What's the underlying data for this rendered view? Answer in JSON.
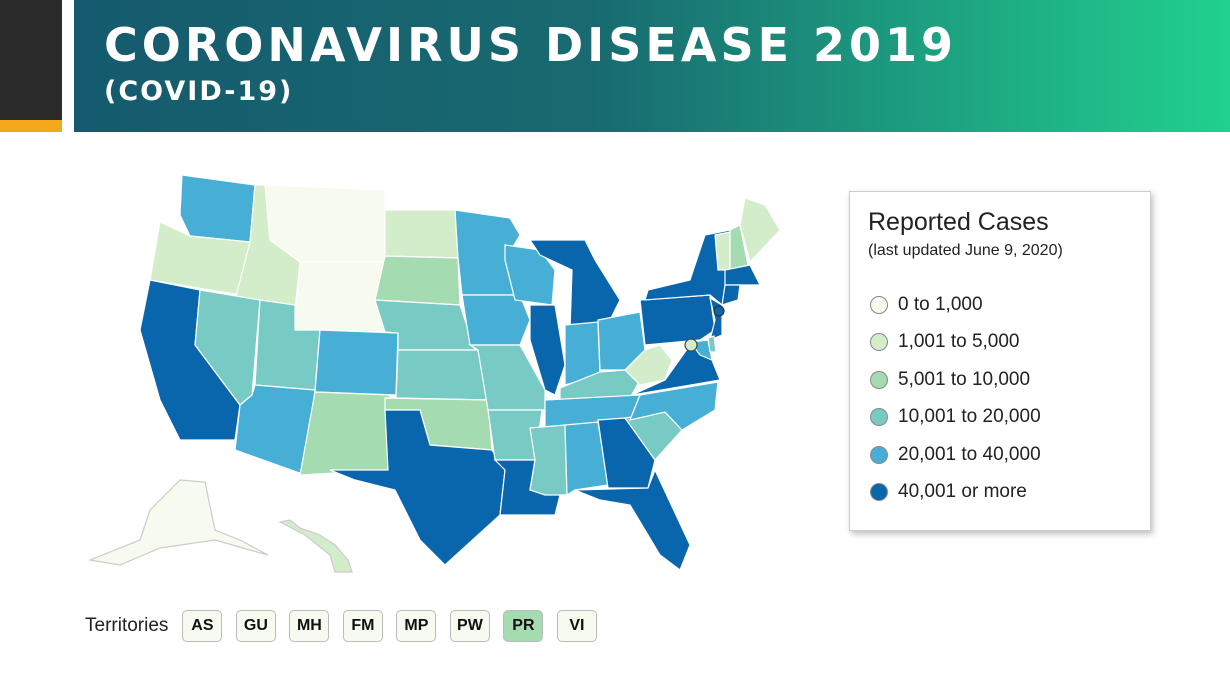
{
  "header": {
    "title": "CORONAVIRUS DISEASE 2019",
    "subtitle": "(COVID-19)"
  },
  "legend": {
    "title": "Reported Cases",
    "subtitle": "(last updated June 9, 2020)",
    "items": [
      {
        "label": "0 to 1,000",
        "color": "#f6faef"
      },
      {
        "label": "1,001 to 5,000",
        "color": "#d3ecc9"
      },
      {
        "label": "5,001 to 10,000",
        "color": "#a5dbb1"
      },
      {
        "label": "10,001 to 20,000",
        "color": "#78cbc4"
      },
      {
        "label": "20,001 to 40,000",
        "color": "#47afd6"
      },
      {
        "label": "40,001 or more",
        "color": "#0a66ac"
      }
    ]
  },
  "map": {
    "states": {
      "WA": 4,
      "OR": 1,
      "CA": 5,
      "ID": 1,
      "NV": 3,
      "MT": 0,
      "WY": 0,
      "UT": 3,
      "AZ": 4,
      "CO": 4,
      "NM": 2,
      "ND": 1,
      "SD": 2,
      "NE": 3,
      "KS": 3,
      "OK": 2,
      "TX": 5,
      "MN": 4,
      "IA": 4,
      "MO": 3,
      "AR": 3,
      "LA": 5,
      "WI": 4,
      "IL": 5,
      "MI": 5,
      "IN": 4,
      "OH": 4,
      "KY": 3,
      "TN": 4,
      "MS": 3,
      "AL": 4,
      "GA": 5,
      "FL": 5,
      "SC": 3,
      "NC": 4,
      "VA": 5,
      "WV": 1,
      "PA": 5,
      "NY": 5,
      "ME": 1,
      "VT": 1,
      "NH": 2,
      "MA": 5,
      "CT": 5,
      "NJ": 5,
      "MD": 4,
      "DE": 3,
      "DC": 1,
      "RI": 5,
      "AK": 0,
      "HI": 1
    }
  },
  "territories": {
    "label": "Territories",
    "items": [
      {
        "code": "AS",
        "category": 0
      },
      {
        "code": "GU",
        "category": 0
      },
      {
        "code": "MH",
        "category": 0
      },
      {
        "code": "FM",
        "category": 0
      },
      {
        "code": "MP",
        "category": 0
      },
      {
        "code": "PW",
        "category": 0
      },
      {
        "code": "PR",
        "category": 2
      },
      {
        "code": "VI",
        "category": 0
      }
    ]
  }
}
